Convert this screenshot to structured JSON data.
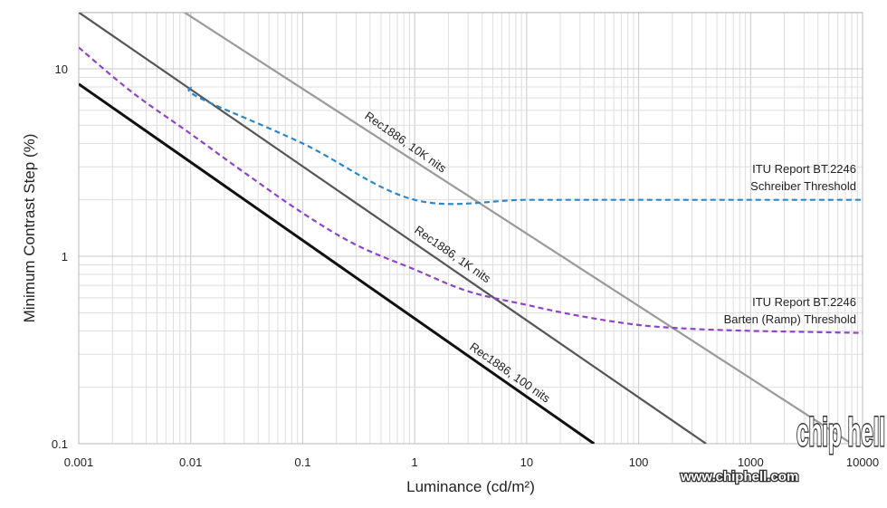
{
  "chart_data": {
    "type": "line",
    "xscale": "log",
    "yscale": "log",
    "xlim": [
      0.001,
      10000
    ],
    "ylim": [
      0.1,
      20
    ],
    "xlabel": "Luminance (cd/m²)",
    "ylabel": "Minimum Contrast Step (%)",
    "x_ticks": [
      0.001,
      0.01,
      0.1,
      1,
      10,
      100,
      1000,
      10000
    ],
    "x_tick_labels": [
      "0.001",
      "0.01",
      "0.1",
      "1",
      "10",
      "100",
      "1000",
      "10000"
    ],
    "y_ticks": [
      0.1,
      1,
      10
    ],
    "y_tick_labels": [
      "0.1",
      "1",
      "10"
    ],
    "grid": true,
    "series": [
      {
        "name": "Rec1886, 10K nits",
        "label": "Rec1886, 10K nits",
        "style": "solid",
        "color": "#9a9a9a",
        "width": 2.2,
        "x": [
          0.0088,
          8000
        ],
        "y": [
          20,
          0.1
        ]
      },
      {
        "name": "Rec1886, 1K nits",
        "label": "Rec1886, 1K nits",
        "style": "solid",
        "color": "#555555",
        "width": 2.2,
        "x": [
          0.001,
          400
        ],
        "y": [
          20,
          0.1
        ]
      },
      {
        "name": "Rec1886, 100 nits",
        "label": "Rec1886, 100 nits",
        "style": "solid",
        "color": "#111111",
        "width": 3,
        "x": [
          0.001,
          40
        ],
        "y": [
          8.3,
          0.1
        ]
      },
      {
        "name": "ITU Report BT.2246 Schreiber Threshold",
        "label_lines": [
          "ITU Report BT.2246",
          "Schreiber Threshold"
        ],
        "style": "dashed",
        "color": "#2e86c8",
        "width": 2.2,
        "x": [
          0.01,
          0.012,
          0.1,
          1,
          10,
          100,
          1000,
          10000
        ],
        "y": [
          8,
          7,
          4,
          2,
          2,
          2,
          2,
          2
        ]
      },
      {
        "name": "ITU Report BT.2246 Barten (Ramp) Threshold",
        "label_lines": [
          "ITU Report BT.2246",
          "Barten (Ramp) Threshold"
        ],
        "style": "dashed",
        "color": "#8e44c8",
        "width": 2.2,
        "x": [
          0.001,
          0.003,
          0.01,
          0.03,
          0.1,
          0.3,
          1,
          3,
          10,
          30,
          100,
          300,
          1000,
          3000,
          10000
        ],
        "y": [
          13,
          7.5,
          4.5,
          2.8,
          1.7,
          1.15,
          0.85,
          0.65,
          0.55,
          0.48,
          0.43,
          0.41,
          0.4,
          0.395,
          0.39
        ]
      }
    ]
  },
  "watermark": {
    "site": "www.chiphell.com",
    "logo": "chip hell"
  }
}
